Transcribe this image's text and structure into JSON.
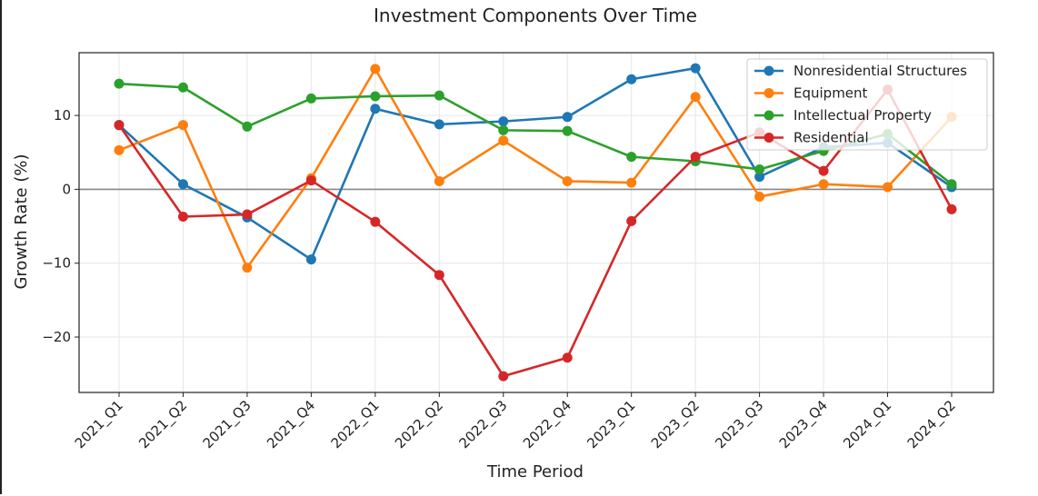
{
  "chart_data": {
    "type": "line",
    "title": "Investment Components Over Time",
    "xlabel": "Time Period",
    "ylabel": "Growth Rate (%)",
    "ylim": [
      -27.5,
      18.5
    ],
    "yticks": [
      -20,
      -10,
      0,
      10
    ],
    "grid": true,
    "zero_line": true,
    "legend_position": "top-right",
    "categories": [
      "2021_Q1",
      "2021_Q2",
      "2021_Q3",
      "2021_Q4",
      "2022_Q1",
      "2022_Q2",
      "2022_Q3",
      "2022_Q4",
      "2023_Q1",
      "2023_Q2",
      "2023_Q3",
      "2023_Q4",
      "2024_Q1",
      "2024_Q2"
    ],
    "series": [
      {
        "name": "Nonresidential Structures",
        "color": "#1f77b4",
        "values": [
          8.7,
          0.7,
          -3.8,
          -9.5,
          10.9,
          8.8,
          9.2,
          9.8,
          14.9,
          16.4,
          1.7,
          5.7,
          6.3,
          0.3
        ]
      },
      {
        "name": "Equipment",
        "color": "#ff7f0e",
        "values": [
          5.3,
          8.7,
          -10.6,
          1.5,
          16.3,
          1.1,
          6.6,
          1.1,
          0.9,
          12.5,
          -1.0,
          0.7,
          0.3,
          9.8
        ]
      },
      {
        "name": "Intellectual Property",
        "color": "#2ca02c",
        "values": [
          14.3,
          13.8,
          8.5,
          12.3,
          12.6,
          12.7,
          8.0,
          7.9,
          4.4,
          3.8,
          2.7,
          5.2,
          7.5,
          0.7
        ]
      },
      {
        "name": "Residential",
        "color": "#d62728",
        "values": [
          8.7,
          -3.7,
          -3.4,
          1.2,
          -4.4,
          -11.6,
          -25.3,
          -22.8,
          -4.3,
          4.4,
          7.7,
          2.5,
          13.5,
          -2.7
        ]
      }
    ]
  }
}
